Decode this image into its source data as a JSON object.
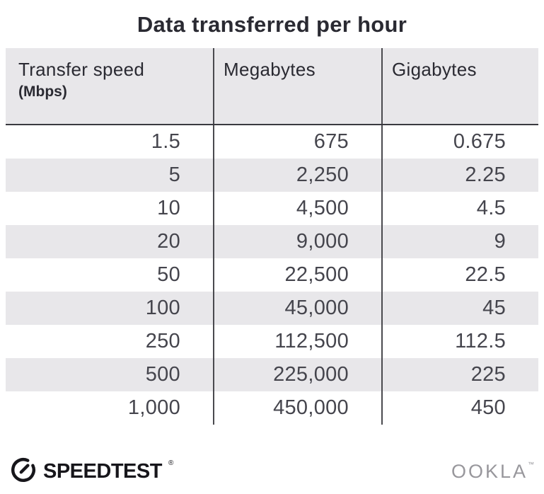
{
  "title": "Data transferred per hour",
  "table": {
    "columns": [
      {
        "label": "Transfer speed",
        "sublabel": "(Mbps)"
      },
      {
        "label": "Megabytes"
      },
      {
        "label": "Gigabytes"
      }
    ],
    "rows": [
      [
        "1.5",
        "675",
        "0.675"
      ],
      [
        "5",
        "2,250",
        "2.25"
      ],
      [
        "10",
        "4,500",
        "4.5"
      ],
      [
        "20",
        "9,000",
        "9"
      ],
      [
        "50",
        "22,500",
        "22.5"
      ],
      [
        "100",
        "45,000",
        "45"
      ],
      [
        "250",
        "112,500",
        "112.5"
      ],
      [
        "500",
        "225,000",
        "225"
      ],
      [
        "1,000",
        "450,000",
        "450"
      ]
    ]
  },
  "chart_data": {
    "type": "table",
    "title": "Data transferred per hour",
    "columns": [
      "Transfer speed (Mbps)",
      "Megabytes",
      "Gigabytes"
    ],
    "rows": [
      [
        1.5,
        675,
        0.675
      ],
      [
        5,
        2250,
        2.25
      ],
      [
        10,
        4500,
        4.5
      ],
      [
        20,
        9000,
        9
      ],
      [
        50,
        22500,
        22.5
      ],
      [
        100,
        45000,
        45
      ],
      [
        250,
        112500,
        112.5
      ],
      [
        500,
        225000,
        225
      ],
      [
        1000,
        450000,
        450
      ]
    ]
  },
  "footer": {
    "speedtest_label": "SPEEDTEST",
    "speedtest_reg": "®",
    "ookla_label": "OOKLA",
    "ookla_tm": "™"
  },
  "colors": {
    "title_text": "#2a2a32",
    "body_text": "#45454d",
    "stripe": "#e8e7ea",
    "header_bg": "#e8e7ea",
    "header_rule": "#3a3a40",
    "divider": "#4a4a4f",
    "logo_dark": "#17161b",
    "ookla_gray": "#98979c"
  }
}
